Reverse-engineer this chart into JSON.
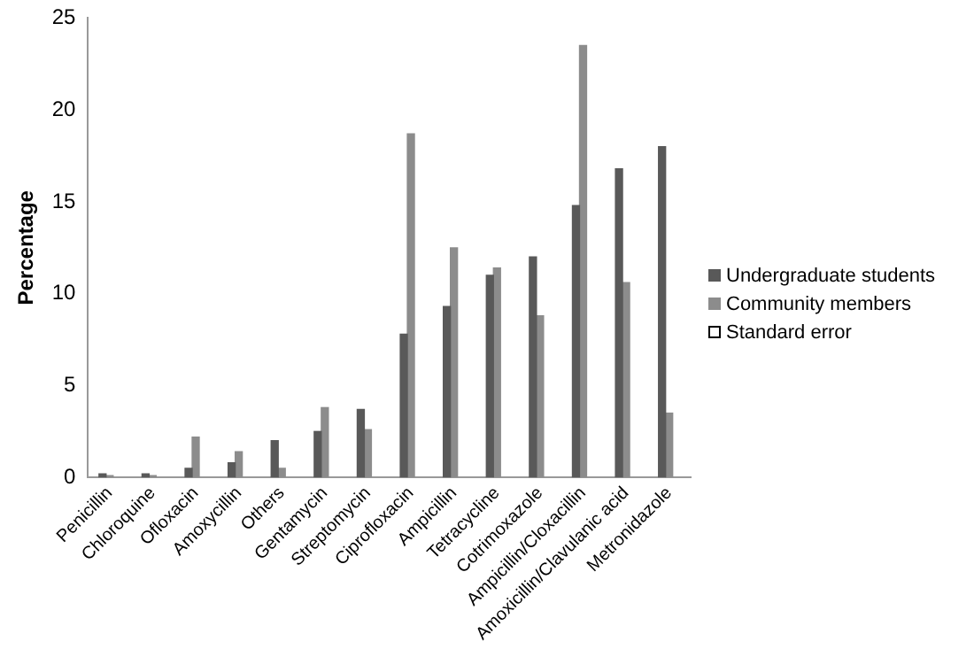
{
  "chart_data": {
    "type": "bar",
    "ylabel": "Percentage",
    "categories": [
      "Penicillin",
      "Chloroquine",
      "Ofloxacin",
      "Amoxycillin",
      "Others",
      "Gentamycin",
      "Streptomycin",
      "Ciprofloxacin",
      "Ampicillin",
      "Tetracycline",
      "Cotrimoxazole",
      "Ampicillin/Cloxacillin",
      "Amoxicillin/Clavulanic acid",
      "Metronidazole"
    ],
    "series": [
      {
        "name": "Undergraduate students",
        "color": "#595959",
        "values": [
          0.2,
          0.2,
          0.5,
          0.8,
          2.0,
          2.5,
          3.7,
          7.8,
          9.3,
          11.0,
          12.0,
          14.8,
          16.8,
          18.0
        ]
      },
      {
        "name": "Community members",
        "color": "#8c8c8c",
        "values": [
          0.1,
          0.1,
          2.2,
          1.4,
          0.5,
          3.8,
          2.6,
          18.7,
          12.5,
          11.4,
          8.8,
          23.5,
          10.6,
          3.5
        ]
      },
      {
        "name": "Standard error",
        "color": "#ffffff",
        "values": [
          null,
          null,
          null,
          null,
          null,
          null,
          null,
          null,
          null,
          null,
          null,
          null,
          null,
          null
        ]
      }
    ],
    "ylim": [
      0,
      25
    ],
    "yticks": [
      0,
      5,
      10,
      15,
      20,
      25
    ],
    "grid": false,
    "legend": "right"
  }
}
